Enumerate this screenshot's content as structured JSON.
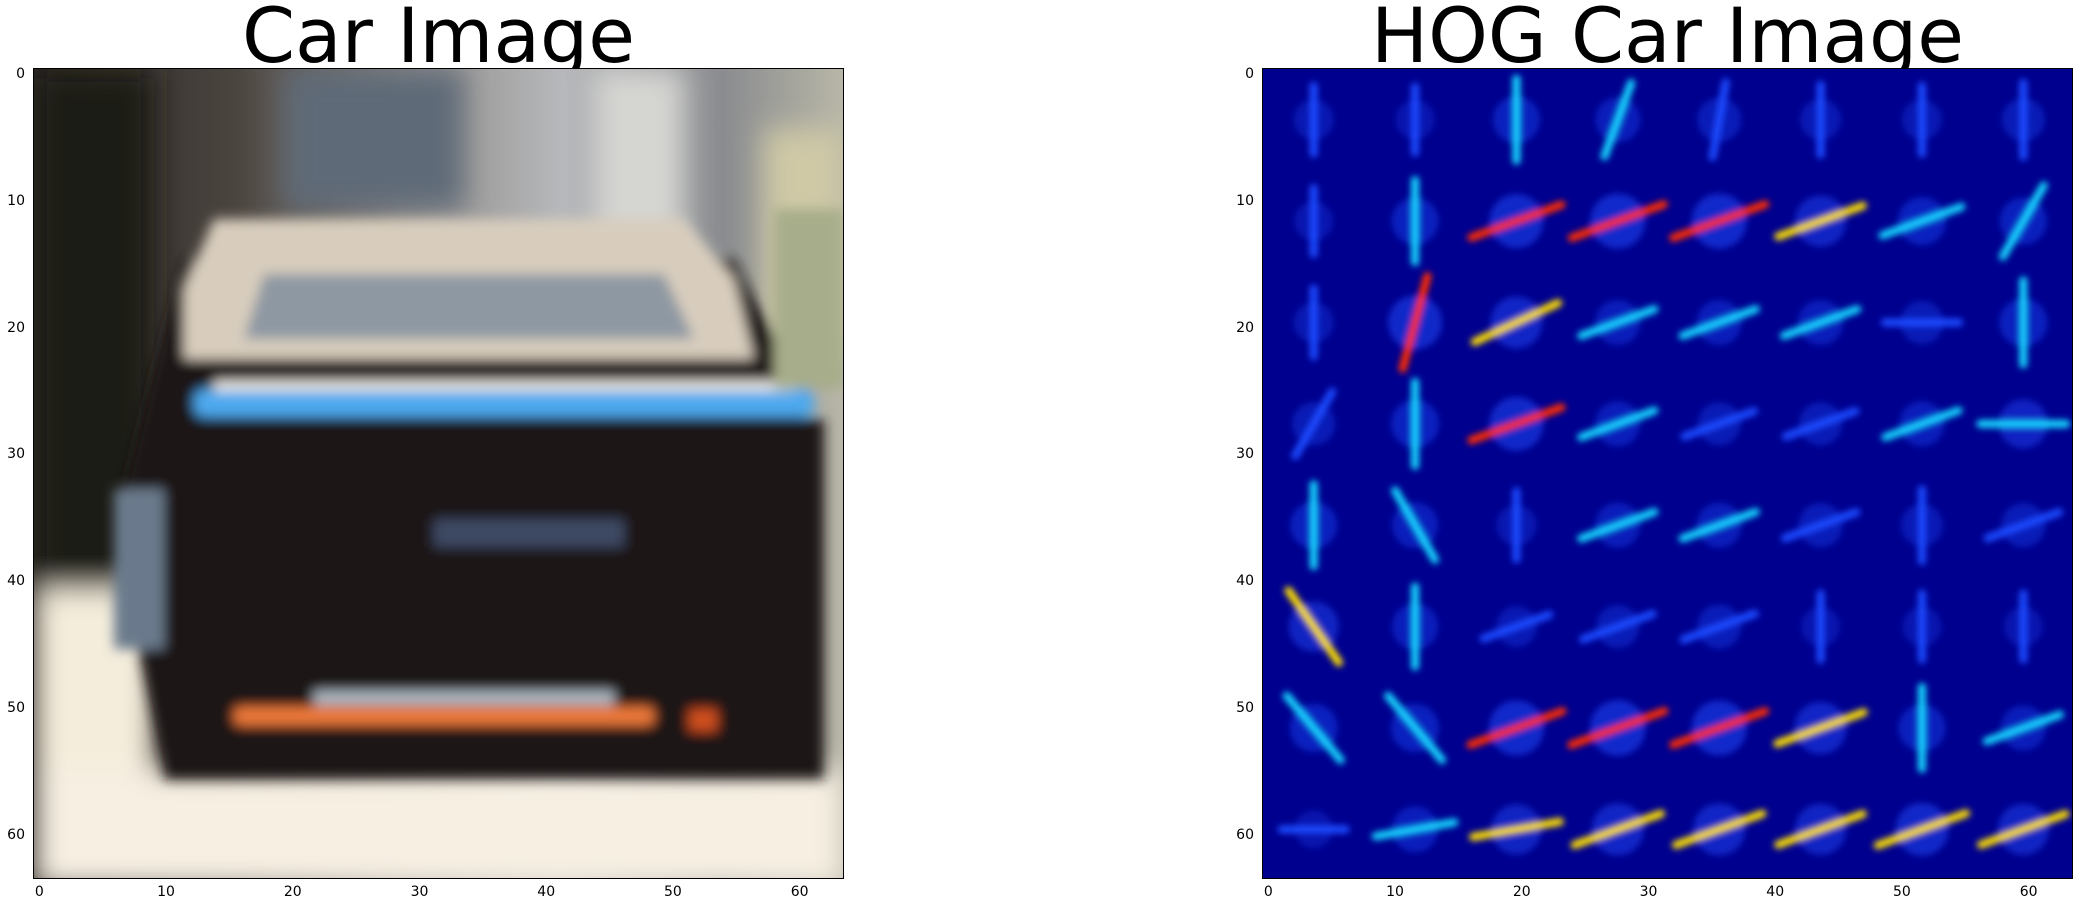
{
  "panels": [
    {
      "title": "Car Image"
    },
    {
      "title": "HOG Car Image"
    }
  ],
  "axis": {
    "xticks": [
      "0",
      "10",
      "20",
      "30",
      "40",
      "50",
      "60"
    ],
    "yticks": [
      "0",
      "10",
      "20",
      "30",
      "40",
      "50",
      "60"
    ],
    "range": [
      -0.5,
      63.5
    ]
  },
  "colors": {
    "hog_background": "#00008f",
    "hog_low": "#1f4cff",
    "hog_mid": "#12d6ff",
    "hog_high": "#ffe000",
    "hog_peak": "#ff2a00"
  }
}
